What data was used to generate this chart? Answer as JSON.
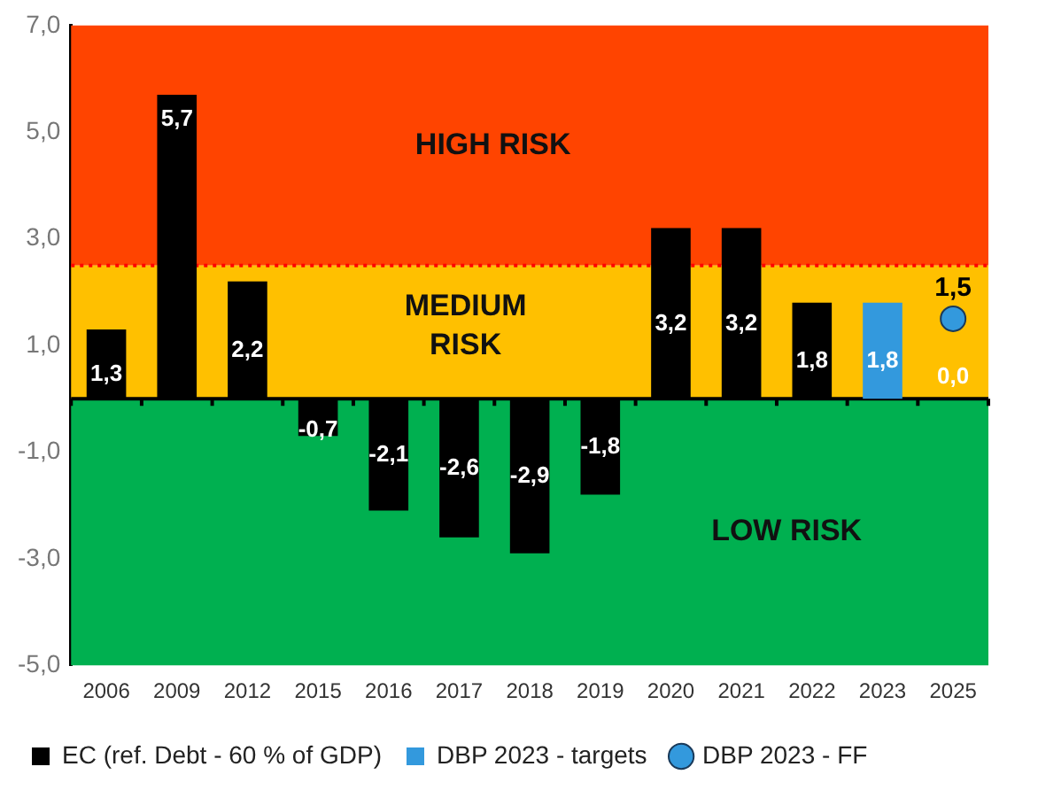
{
  "chart_data": {
    "type": "bar",
    "categories": [
      "2006",
      "2009",
      "2012",
      "2015",
      "2016",
      "2017",
      "2018",
      "2019",
      "2020",
      "2021",
      "2022",
      "2023",
      "2025"
    ],
    "series": [
      {
        "name": "EC (ref. Debt - 60 % of GDP)",
        "color": "#000000",
        "values": [
          1.3,
          5.7,
          2.2,
          -0.7,
          -2.1,
          -2.6,
          -2.9,
          -1.8,
          3.2,
          3.2,
          1.8,
          null,
          0.0
        ],
        "value_labels": [
          "1,3",
          "5,7",
          "2,2",
          "-0,7",
          "-2,1",
          "-2,6",
          "-2,9",
          "-1,8",
          "3,2",
          "3,2",
          "1,8",
          null,
          "0,0"
        ]
      },
      {
        "name": "DBP 2023 - targets",
        "color": "#3399dd",
        "values": [
          null,
          null,
          null,
          null,
          null,
          null,
          null,
          null,
          null,
          null,
          null,
          1.8,
          null
        ],
        "value_labels": [
          null,
          null,
          null,
          null,
          null,
          null,
          null,
          null,
          null,
          null,
          null,
          "1,8",
          null
        ]
      },
      {
        "name": "DBP 2023 - FF",
        "type": "scatter",
        "color": "#3399dd",
        "marker": "circle",
        "values": [
          null,
          null,
          null,
          null,
          null,
          null,
          null,
          null,
          null,
          null,
          null,
          null,
          1.5
        ],
        "value_labels": [
          null,
          null,
          null,
          null,
          null,
          null,
          null,
          null,
          null,
          null,
          null,
          null,
          "1,5"
        ]
      }
    ],
    "ylim": [
      -5,
      7
    ],
    "yticks": [
      {
        "value": -5,
        "label": "-5,0"
      },
      {
        "value": -3,
        "label": "-3,0"
      },
      {
        "value": -1,
        "label": "-1,0"
      },
      {
        "value": 1,
        "label": "1,0"
      },
      {
        "value": 3,
        "label": "3,0"
      },
      {
        "value": 5,
        "label": "5,0"
      },
      {
        "value": 7,
        "label": "7,0"
      }
    ],
    "bands": [
      {
        "axis": "y",
        "from": 2.5,
        "to": 7,
        "label": "HIGH RISK",
        "color": "#ff4400"
      },
      {
        "axis": "y",
        "from": 0,
        "to": 2.5,
        "label": "MEDIUM RISK",
        "color": "#ffc000"
      },
      {
        "axis": "y",
        "from": -5,
        "to": 0,
        "label": "LOW RISK",
        "color": "#00b050"
      }
    ],
    "ref_lines": [
      {
        "axis": "y",
        "value": 2.5,
        "color": "#ff0000",
        "line_style": "dotted"
      }
    ],
    "grid": false,
    "legend": "bottom"
  }
}
